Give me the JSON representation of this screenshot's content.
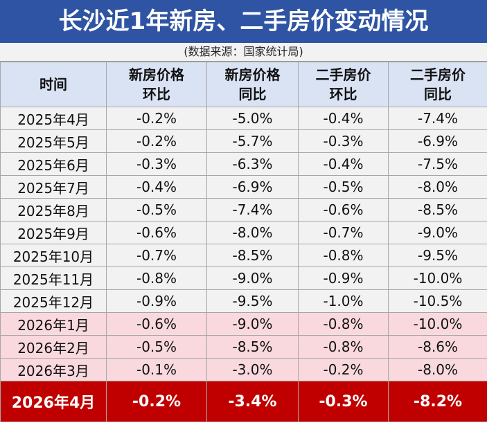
{
  "header": {
    "title": "长沙近1年新房、二手房价变动情况",
    "source": "(数据来源：国家统计局)"
  },
  "table": {
    "columns": [
      [
        "时间"
      ],
      [
        "新房价格",
        "环比"
      ],
      [
        "新房价格",
        "同比"
      ],
      [
        "二手房价",
        "环比"
      ],
      [
        "二手房价",
        "同比"
      ]
    ],
    "rows": [
      [
        "2025年4月",
        "-0.2%",
        "-5.0%",
        "-0.4%",
        "-7.4%"
      ],
      [
        "2025年5月",
        "-0.2%",
        "-5.7%",
        "-0.3%",
        "-6.9%"
      ],
      [
        "2025年6月",
        "-0.3%",
        "-6.3%",
        "-0.4%",
        "-7.5%"
      ],
      [
        "2025年7月",
        "-0.4%",
        "-6.9%",
        "-0.5%",
        "-8.0%"
      ],
      [
        "2025年8月",
        "-0.5%",
        "-7.4%",
        "-0.6%",
        "-8.5%"
      ],
      [
        "2025年9月",
        "-0.6%",
        "-8.0%",
        "-0.7%",
        "-9.0%"
      ],
      [
        "2025年10月",
        "-0.7%",
        "-8.5%",
        "-0.8%",
        "-9.5%"
      ],
      [
        "2025年11月",
        "-0.8%",
        "-9.0%",
        "-0.9%",
        "-10.0%"
      ],
      [
        "2025年12月",
        "-0.9%",
        "-9.5%",
        "-1.0%",
        "-10.5%"
      ],
      [
        "2026年1月",
        "-0.6%",
        "-9.0%",
        "-0.8%",
        "-10.0%"
      ],
      [
        "2026年2月",
        "-0.5%",
        "-8.5%",
        "-0.8%",
        "-8.6%"
      ],
      [
        "2026年3月",
        "-0.1%",
        "-3.0%",
        "-0.2%",
        "-8.0%"
      ],
      [
        "2026年4月",
        "-0.2%",
        "-3.4%",
        "-0.3%",
        "-8.2%"
      ]
    ]
  }
}
